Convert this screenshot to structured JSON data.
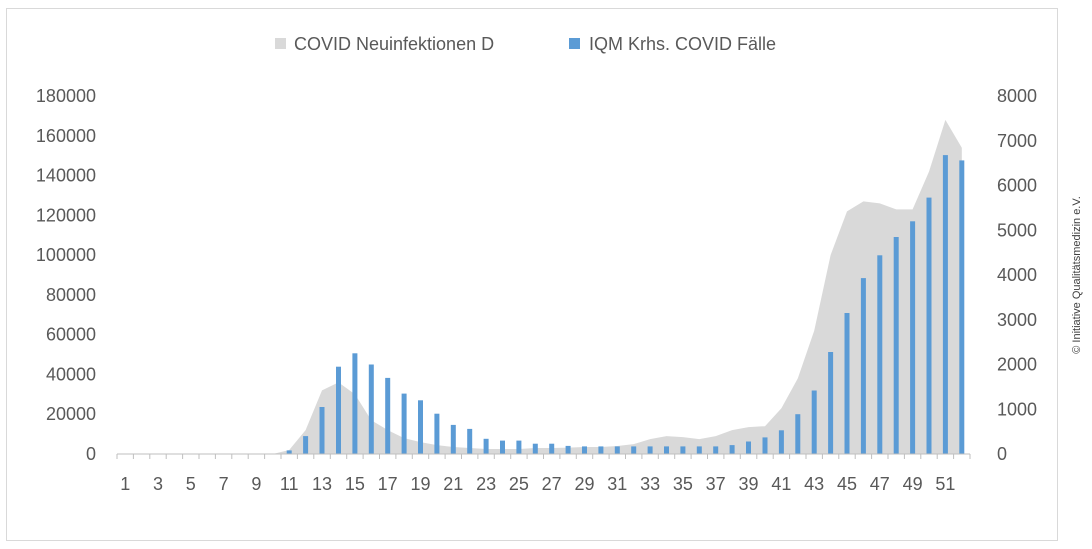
{
  "chart_data": {
    "type": "bar",
    "title": "",
    "xlabel": "",
    "ylabel": "",
    "x": [
      1,
      2,
      3,
      4,
      5,
      6,
      7,
      8,
      9,
      10,
      11,
      12,
      13,
      14,
      15,
      16,
      17,
      18,
      19,
      20,
      21,
      22,
      23,
      24,
      25,
      26,
      27,
      28,
      29,
      30,
      31,
      32,
      33,
      34,
      35,
      36,
      37,
      38,
      39,
      40,
      41,
      42,
      43,
      44,
      45,
      46,
      47,
      48,
      49,
      50,
      51,
      52
    ],
    "x_tick_labels": [
      "1",
      "3",
      "5",
      "7",
      "9",
      "11",
      "13",
      "15",
      "17",
      "19",
      "21",
      "23",
      "25",
      "27",
      "29",
      "31",
      "33",
      "35",
      "37",
      "39",
      "41",
      "43",
      "45",
      "47",
      "49",
      "51"
    ],
    "y_left_ticks": [
      "0",
      "20000",
      "40000",
      "60000",
      "80000",
      "100000",
      "120000",
      "140000",
      "160000",
      "180000"
    ],
    "y_right_ticks": [
      "0",
      "1000",
      "2000",
      "3000",
      "4000",
      "5000",
      "6000",
      "7000",
      "8000"
    ],
    "ylim_left": [
      0,
      180000
    ],
    "ylim_right": [
      0,
      8000
    ],
    "legend_position": "top",
    "grid": false,
    "series": [
      {
        "name": "COVID Neuinfektionen D",
        "type": "area",
        "axis": "left",
        "color": "#d9d9d9",
        "values": [
          0,
          0,
          0,
          0,
          0,
          0,
          0,
          0,
          0,
          0,
          2000,
          12000,
          32000,
          36000,
          30000,
          17000,
          12000,
          8000,
          6000,
          4500,
          3500,
          3000,
          2500,
          2500,
          2500,
          3000,
          3000,
          3200,
          3500,
          3500,
          4000,
          5000,
          7500,
          9000,
          8500,
          7500,
          9000,
          12000,
          13500,
          14000,
          23000,
          38000,
          62000,
          100000,
          122000,
          127000,
          126000,
          123000,
          123000,
          142000,
          168000,
          154000
        ]
      },
      {
        "name": "IQM Krhs. COVID Fälle",
        "type": "bar",
        "axis": "right",
        "color": "#5b9bd5",
        "values": [
          0,
          0,
          0,
          0,
          0,
          0,
          0,
          0,
          0,
          0,
          80,
          400,
          1050,
          1950,
          2250,
          2000,
          1700,
          1350,
          1200,
          900,
          650,
          560,
          340,
          300,
          300,
          230,
          230,
          180,
          170,
          170,
          170,
          170,
          170,
          170,
          170,
          170,
          170,
          200,
          280,
          370,
          530,
          890,
          1420,
          2280,
          3150,
          3930,
          4440,
          4850,
          5200,
          5730,
          6680,
          6560
        ]
      }
    ]
  },
  "copyright": "© Initiative Qualitätsmedizin e.V."
}
